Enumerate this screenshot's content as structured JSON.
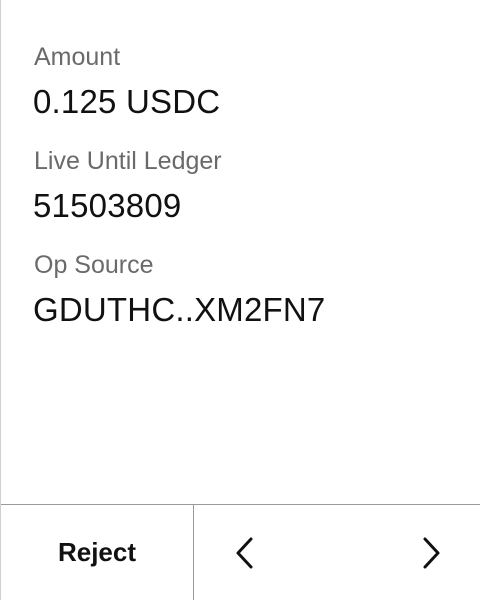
{
  "fields": [
    {
      "label": "Amount",
      "value": "0.125 USDC"
    },
    {
      "label": "Live Until Ledger",
      "value": "51503809"
    },
    {
      "label": "Op Source",
      "value": "GDUTHC..XM2FN7"
    }
  ],
  "footer": {
    "reject_label": "Reject",
    "prev_icon": "chevron-left-icon",
    "next_icon": "chevron-right-icon"
  },
  "colors": {
    "label": "#6a6a6a",
    "value": "#111111",
    "divider": "#9a9a9a",
    "background": "#ffffff"
  }
}
